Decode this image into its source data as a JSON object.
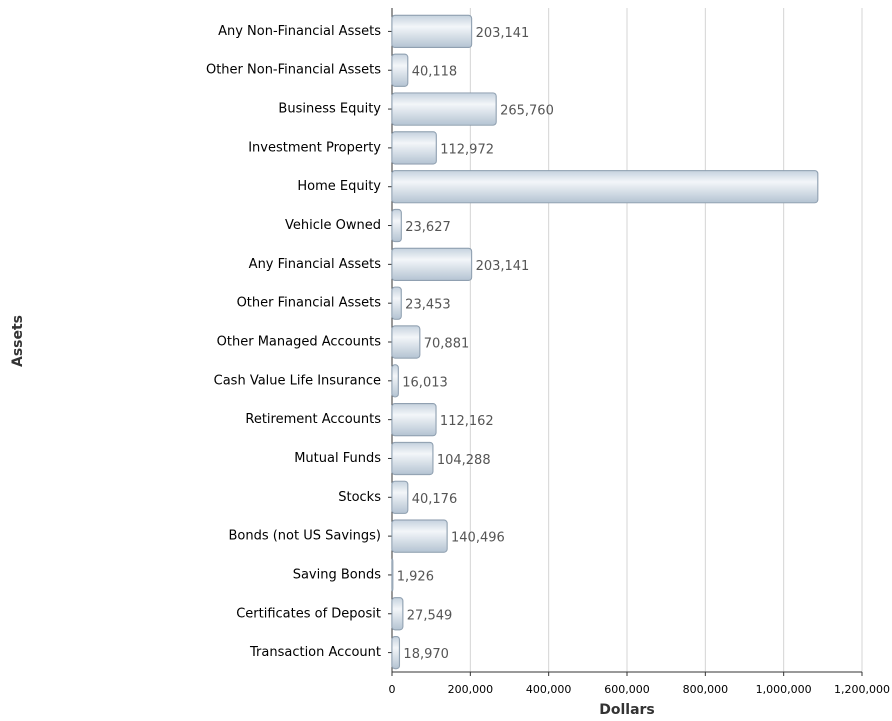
{
  "chart_data": {
    "type": "bar",
    "orientation": "horizontal",
    "x_label": "Dollars",
    "y_label": "Assets",
    "categories": [
      "Any Non-Financial Assets",
      "Other Non-Financial Assets",
      "Business Equity",
      "Investment Property",
      "Home Equity",
      "Vehicle Owned",
      "Any Financial Assets",
      "Other Financial Assets",
      "Other Managed Accounts",
      "Cash Value Life Insurance",
      "Retirement Accounts",
      "Mutual Funds",
      "Stocks",
      "Bonds (not US Savings)",
      "Saving Bonds",
      "Certificates of Deposit",
      "Transaction Account"
    ],
    "values": [
      203141,
      40118,
      265760,
      112972,
      1087000,
      23627,
      203141,
      23453,
      70881,
      16013,
      112162,
      104288,
      40176,
      140496,
      1926,
      27549,
      18970
    ],
    "value_labels": [
      "203,141",
      "40,118",
      "265,760",
      "112,972",
      null,
      "23,627",
      "203,141",
      "23,453",
      "70,881",
      "16,013",
      "112,162",
      "104,288",
      "40,176",
      "140,496",
      "1,926",
      "27,549",
      "18,970"
    ],
    "color": "#dce6ee",
    "xlim": [
      0,
      1200000
    ],
    "xticks": [
      0,
      {
        "value": 200000,
        "label": "200,000"
      },
      {
        "value": 400000,
        "label": "400,000"
      },
      {
        "value": 600000,
        "label": "600,000"
      },
      {
        "value": 800000,
        "label": "800,000"
      },
      {
        "value": 1000000,
        "label": "1,000,000"
      },
      {
        "value": 1200000,
        "label": "1,200,000"
      }
    ],
    "grid": true
  }
}
